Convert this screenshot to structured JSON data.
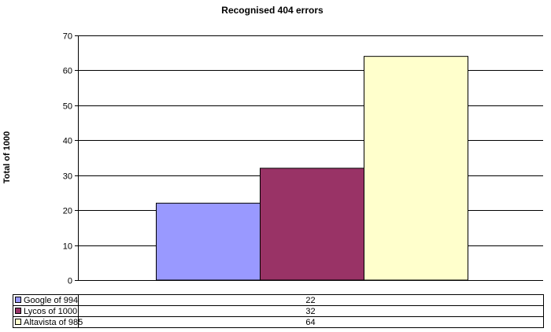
{
  "chart_data": {
    "type": "bar",
    "title": "Recognised 404 errors",
    "xlabel": "",
    "ylabel": "Total of 1000",
    "ylim": [
      0,
      70
    ],
    "yticks": [
      0,
      10,
      20,
      30,
      40,
      50,
      60,
      70
    ],
    "grid": true,
    "legend": "data-table",
    "series": [
      {
        "name": "Google of 994",
        "value": 22,
        "color": "#9999ff"
      },
      {
        "name": "Lycos of 1000",
        "value": 32,
        "color": "#993366"
      },
      {
        "name": "Altavista of 985",
        "value": 64,
        "color": "#ffffcc"
      }
    ],
    "table": [
      {
        "label": "Google of 994",
        "value": "22"
      },
      {
        "label": "Lycos of 1000",
        "value": "32"
      },
      {
        "label": "Altavista of 985",
        "value": "64"
      }
    ]
  }
}
